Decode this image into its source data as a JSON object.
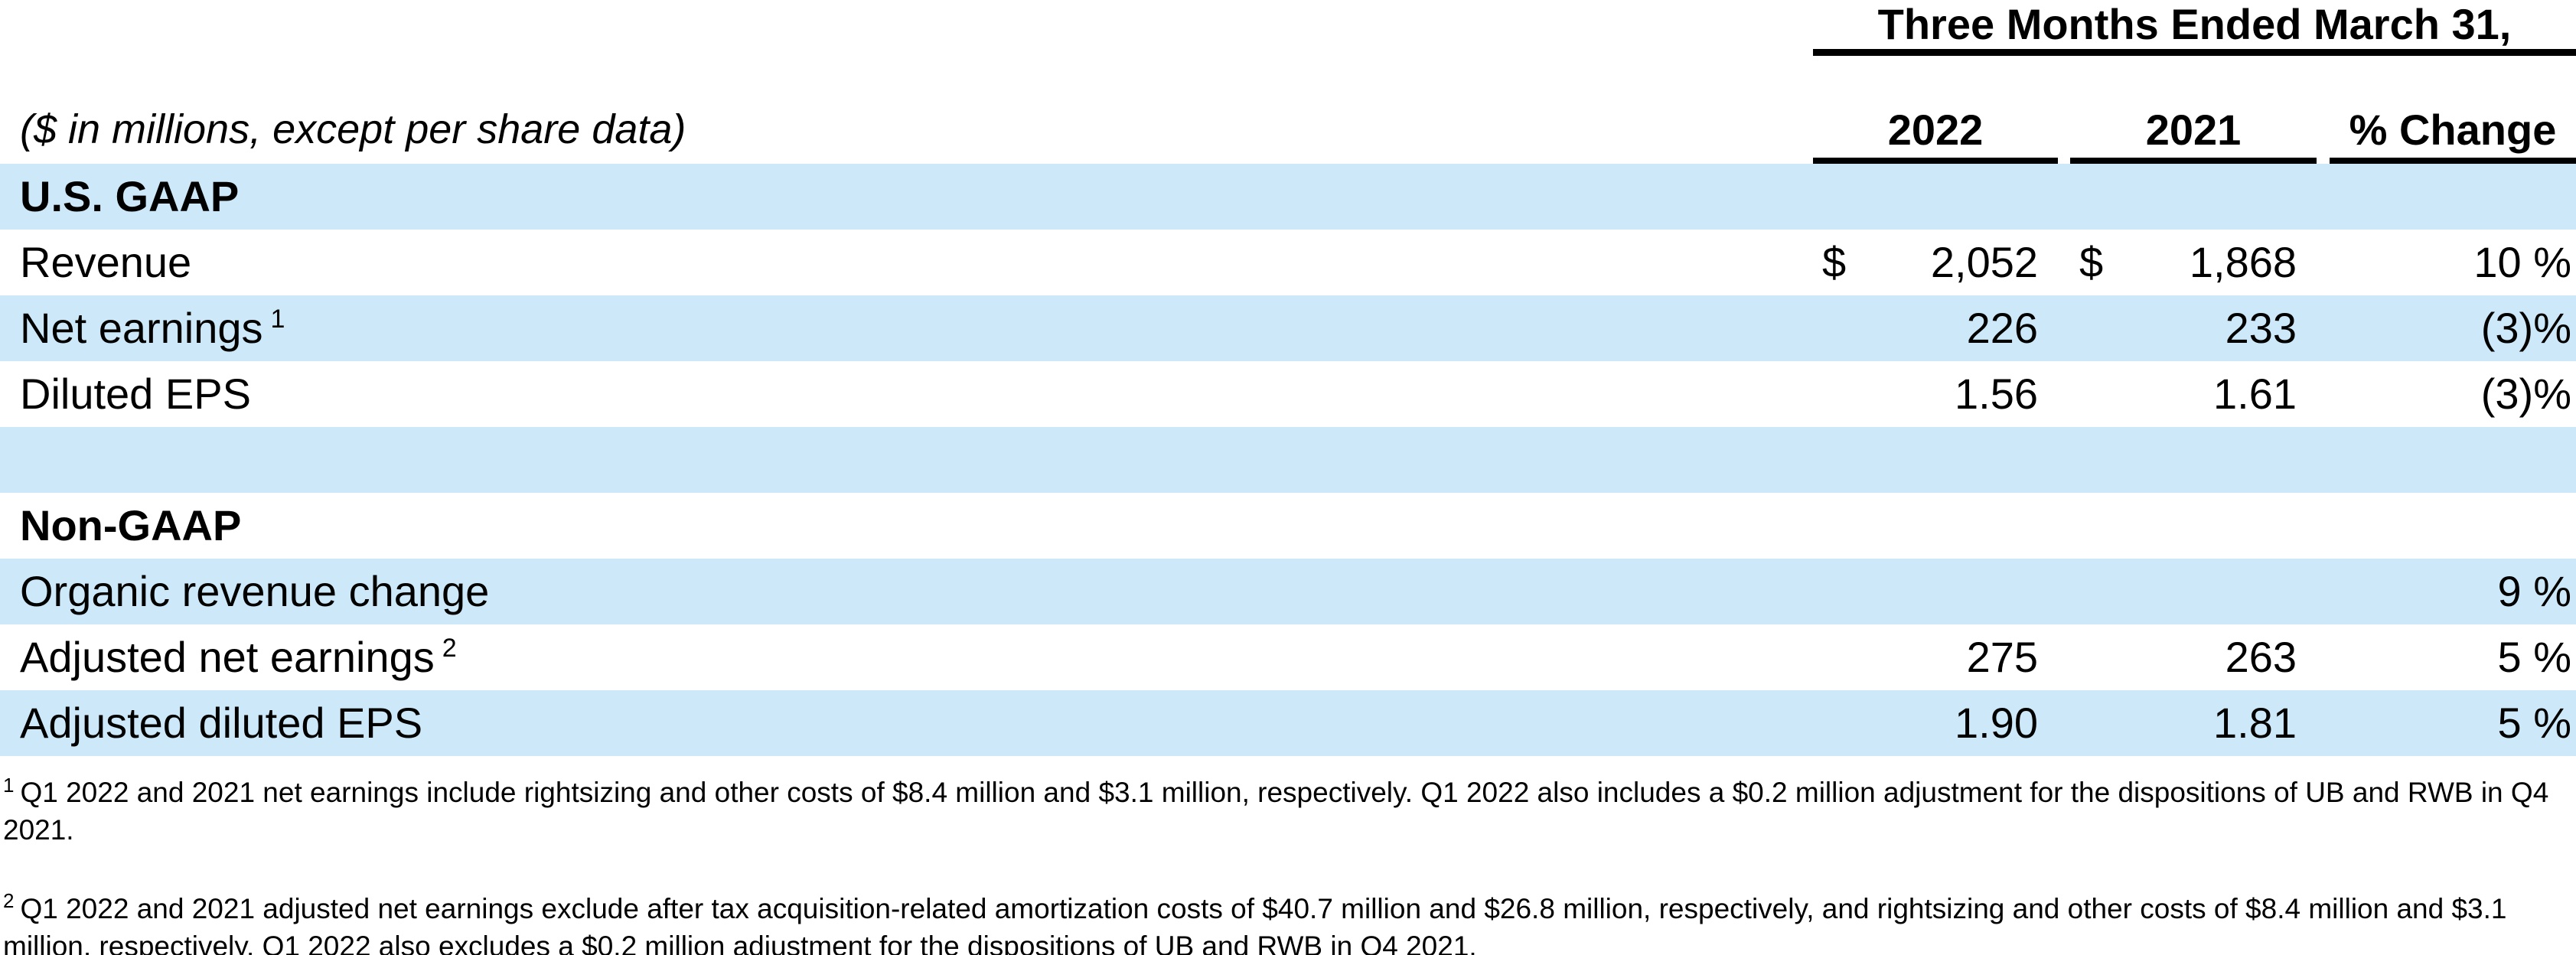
{
  "table": {
    "period_header": "Three Months Ended March 31,",
    "row_header_note": "($ in millions, except per share data)",
    "columns": [
      "2022",
      "2021",
      "% Change"
    ],
    "rows": [
      {
        "label": "U.S. GAAP",
        "style": "section",
        "shaded": true
      },
      {
        "label": "Revenue",
        "currency_2022": "$",
        "val_2022": "2,052",
        "currency_2021": "$",
        "val_2021": "1,868",
        "pct_change": "10 %",
        "shaded": false
      },
      {
        "label": "Net earnings",
        "footnote_ref": "1",
        "val_2022": "226",
        "val_2021": "233",
        "pct_change": "(3)%",
        "shaded": true
      },
      {
        "label": "Diluted EPS",
        "val_2022": "1.56",
        "val_2021": "1.61",
        "pct_change": "(3)%",
        "shaded": false
      },
      {
        "label": "",
        "style": "spacer",
        "shaded": true
      },
      {
        "label": "Non-GAAP",
        "style": "section",
        "shaded": false
      },
      {
        "label": "Organic revenue change",
        "pct_change": "9 %",
        "shaded": true
      },
      {
        "label": "Adjusted net earnings",
        "footnote_ref": "2",
        "val_2022": "275",
        "val_2021": "263",
        "pct_change": "5 %",
        "shaded": false
      },
      {
        "label": "Adjusted diluted EPS",
        "val_2022": "1.90",
        "val_2021": "1.81",
        "pct_change": "5 %",
        "shaded": true
      }
    ]
  },
  "footnotes": [
    {
      "ref": "1",
      "text": "Q1 2022 and 2021 net earnings include rightsizing and other costs of $8.4 million and $3.1 million, respectively. Q1 2022 also includes a $0.2 million adjustment for the dispositions of UB and RWB in Q4 2021."
    },
    {
      "ref": "2",
      "text": "Q1 2022 and 2021 adjusted net earnings exclude after tax acquisition-related amortization costs of $40.7 million and $26.8 million, respectively, and rightsizing and other costs of $8.4 million and $3.1 million, respectively. Q1 2022 also excludes a $0.2 million adjustment for the dispositions of UB and RWB in Q4 2021."
    }
  ],
  "colors": {
    "row_shade": "#cce8f9",
    "text": "#000000",
    "background": "#ffffff"
  }
}
